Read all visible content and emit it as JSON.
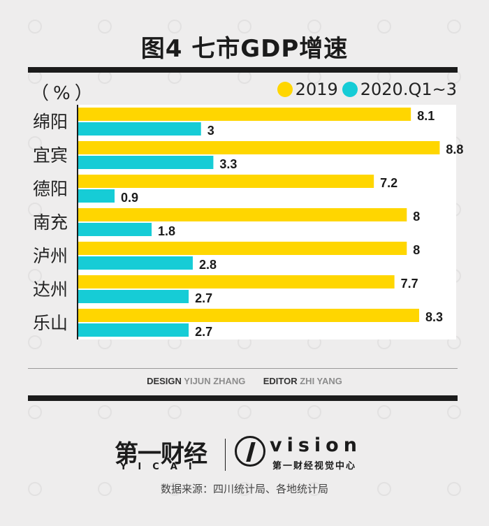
{
  "title": "图4 七市GDP增速",
  "unit_label": "（%）",
  "chart_data": {
    "type": "bar",
    "orientation": "horizontal",
    "categories": [
      "绵阳",
      "宜宾",
      "德阳",
      "南充",
      "泸州",
      "达州",
      "乐山"
    ],
    "series": [
      {
        "name": "2019",
        "color": "#ffd600",
        "values": [
          8.1,
          8.8,
          7.2,
          8,
          8,
          7.7,
          8.3
        ]
      },
      {
        "name": "2020.Q1~3",
        "color": "#16ccd6",
        "values": [
          3,
          3.3,
          0.9,
          1.8,
          2.8,
          2.7,
          2.7
        ]
      }
    ],
    "xlim": [
      0,
      9.2
    ],
    "title": "图4 七市GDP增速",
    "xlabel": "",
    "ylabel": "（%）",
    "grid": false,
    "legend": "top-right"
  },
  "credits": {
    "design_label": "DESIGN",
    "design_name": "YIJUN ZHANG",
    "editor_label": "EDITOR",
    "editor_name": "ZHI YANG"
  },
  "logos": {
    "yicai_name": "第一财经",
    "yicai_sub": "YICAI",
    "vision_word": "vision",
    "vision_sub": "第一财经视觉中心"
  },
  "source": "数据来源：四川统计局、各地统计局"
}
